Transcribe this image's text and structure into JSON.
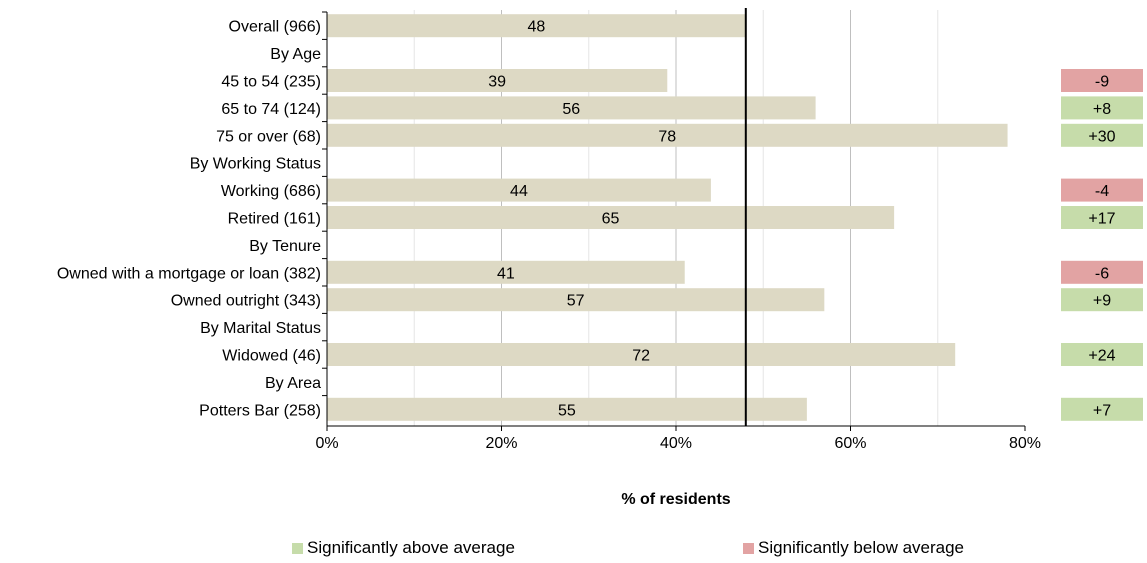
{
  "chart_data": {
    "type": "bar",
    "orientation": "horizontal",
    "xlabel": "% of residents",
    "xlim": [
      0,
      80
    ],
    "x_ticks": [
      "0%",
      "20%",
      "40%",
      "60%",
      "80%"
    ],
    "reference_line": 48,
    "rows": [
      {
        "label": "Overall (966)",
        "value": 48,
        "diff": null,
        "sig": null
      },
      {
        "label": "By Age",
        "value": null,
        "diff": null,
        "sig": null
      },
      {
        "label": "45 to 54 (235)",
        "value": 39,
        "diff": "-9",
        "sig": "below"
      },
      {
        "label": "65 to 74 (124)",
        "value": 56,
        "diff": "+8",
        "sig": "above"
      },
      {
        "label": "75 or over (68)",
        "value": 78,
        "diff": "+30",
        "sig": "above"
      },
      {
        "label": "By Working Status",
        "value": null,
        "diff": null,
        "sig": null
      },
      {
        "label": "Working (686)",
        "value": 44,
        "diff": "-4",
        "sig": "below"
      },
      {
        "label": "Retired (161)",
        "value": 65,
        "diff": "+17",
        "sig": "above"
      },
      {
        "label": "By Tenure",
        "value": null,
        "diff": null,
        "sig": null
      },
      {
        "label": "Owned with a mortgage or loan  (382)",
        "value": 41,
        "diff": "-6",
        "sig": "below"
      },
      {
        "label": "Owned outright (343)",
        "value": 57,
        "diff": "+9",
        "sig": "above"
      },
      {
        "label": "By Marital Status",
        "value": null,
        "diff": null,
        "sig": null
      },
      {
        "label": "Widowed (46)",
        "value": 72,
        "diff": "+24",
        "sig": "above"
      },
      {
        "label": "By Area",
        "value": null,
        "diff": null,
        "sig": null
      },
      {
        "label": "Potters Bar (258)",
        "value": 55,
        "diff": "+7",
        "sig": "above"
      }
    ],
    "legend": [
      {
        "key": "above",
        "label": "Significantly above average",
        "color": "#c6dcaa"
      },
      {
        "key": "below",
        "label": "Significantly below average",
        "color": "#e2a3a3"
      }
    ],
    "colors": {
      "bar": "#ddd9c4",
      "above": "#c6dcaa",
      "below": "#e2a3a3",
      "grid": "#d9d9d9"
    }
  }
}
